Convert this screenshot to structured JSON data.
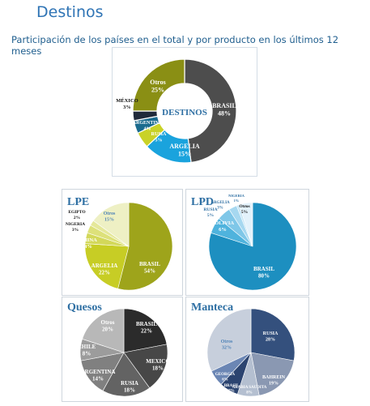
{
  "header": {
    "title": "Destinos",
    "subtitle": "Participación de los países en el total y por producto en los últimos 12 meses"
  },
  "chart_data": [
    {
      "type": "pie",
      "variant": "donut",
      "title": "",
      "center_label": "DESTINOS",
      "categories": [
        "BRASIL",
        "ARGELIA",
        "RUSIA",
        "ARGENTINA",
        "MÉXICO",
        "Otros"
      ],
      "values": [
        48,
        15,
        5,
        4,
        3,
        25
      ],
      "value_labels": [
        "48%",
        "15%",
        "5%",
        "4%",
        "3%",
        "25%"
      ],
      "colors": [
        "#4d4d4d",
        "#1aa3dd",
        "#c9d227",
        "#1a6b8e",
        "#202a3a",
        "#8a8f14"
      ]
    },
    {
      "type": "pie",
      "title": "LPE",
      "categories": [
        "BRASIL",
        "ARGELIA",
        "CHINA",
        "NIGERIA",
        "EGIPTO",
        "Otros"
      ],
      "values": [
        54,
        22,
        4,
        3,
        2,
        15
      ],
      "value_labels": [
        "54%",
        "22%",
        "4%",
        "3%",
        "2%",
        "15%"
      ],
      "colors": [
        "#9ea41b",
        "#c7cd25",
        "#d3d85a",
        "#dde17a",
        "#e5e89a",
        "#eef0c4"
      ]
    },
    {
      "type": "pie",
      "title": "LPD",
      "categories": [
        "BRASIL",
        "BOLIVIA",
        "RUSIA",
        "ARGELIA",
        "NIGERIA",
        "Otros"
      ],
      "values": [
        80,
        6,
        5,
        3,
        1,
        5
      ],
      "value_labels": [
        "80%",
        "6%",
        "5%",
        "3%",
        "1%",
        "5%"
      ],
      "colors": [
        "#1d8fc0",
        "#4fb3dd",
        "#7fc7e8",
        "#a6d8f0",
        "#c6e6f6",
        "#e3f2fb"
      ]
    },
    {
      "type": "pie",
      "title": "Quesos",
      "categories": [
        "BRASIL",
        "MEXICO",
        "RUSIA",
        "ARGENTINA",
        "CHILE",
        "Otros"
      ],
      "values": [
        22,
        18,
        18,
        14,
        8,
        20
      ],
      "value_labels": [
        "22%",
        "18%",
        "18%",
        "14%",
        "8%",
        "20%"
      ],
      "colors": [
        "#2b2b2b",
        "#474747",
        "#636363",
        "#808080",
        "#9c9c9c",
        "#b8b8b8"
      ]
    },
    {
      "type": "pie",
      "title": "Manteca",
      "categories": [
        "RUSIA",
        "BAHREIN",
        "ARABIA SAUDITA",
        "BRASIL",
        "GEORGIA",
        "Otros"
      ],
      "values": [
        28,
        19,
        8,
        7,
        6,
        32
      ],
      "value_labels": [
        "28%",
        "19%",
        "8%",
        "7%",
        "6%",
        "32%"
      ],
      "colors": [
        "#34507d",
        "#8a98b2",
        "#b4bfd0",
        "#2c4470",
        "#6b86b4",
        "#c7cfdc"
      ]
    }
  ]
}
